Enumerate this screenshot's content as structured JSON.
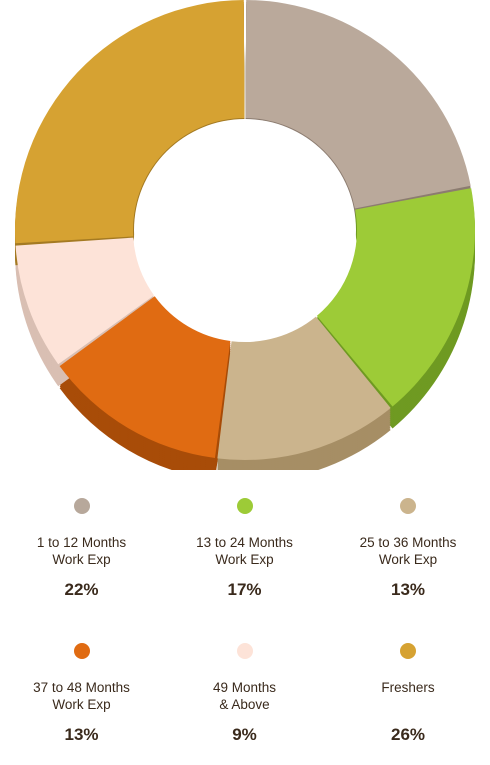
{
  "chart_data": {
    "type": "pie",
    "variant": "donut",
    "slices": [
      {
        "label": "1 to 12 Months\nWork Exp",
        "percent_label": "22%",
        "value": 22,
        "color": "#baa99b",
        "side_color": "#8c7c70",
        "legend_dot_color": "#b7a89b"
      },
      {
        "label": "13 to 24 Months\nWork Exp",
        "percent_label": "17%",
        "value": 17,
        "color": "#9dcb37",
        "side_color": "#6f9a22",
        "legend_dot_color": "#9dcb37"
      },
      {
        "label": "25 to 36 Months\nWork Exp",
        "percent_label": "13%",
        "value": 13,
        "color": "#cbb48d",
        "side_color": "#a68e65",
        "legend_dot_color": "#cbb48d"
      },
      {
        "label": "37 to 48 Months\nWork Exp",
        "percent_label": "13%",
        "value": 13,
        "color": "#e06b12",
        "side_color": "#a84c08",
        "legend_dot_color": "#e06b12"
      },
      {
        "label": "49 Months\n& Above",
        "percent_label": "9%",
        "value": 9,
        "color": "#fde3d8",
        "side_color": "#d9bfb3",
        "legend_dot_color": "#fde3d8"
      },
      {
        "label": "Freshers",
        "percent_label": "26%",
        "value": 26,
        "color": "#d6a232",
        "side_color": "#a47a22",
        "legend_dot_color": "#d6a232"
      }
    ]
  }
}
